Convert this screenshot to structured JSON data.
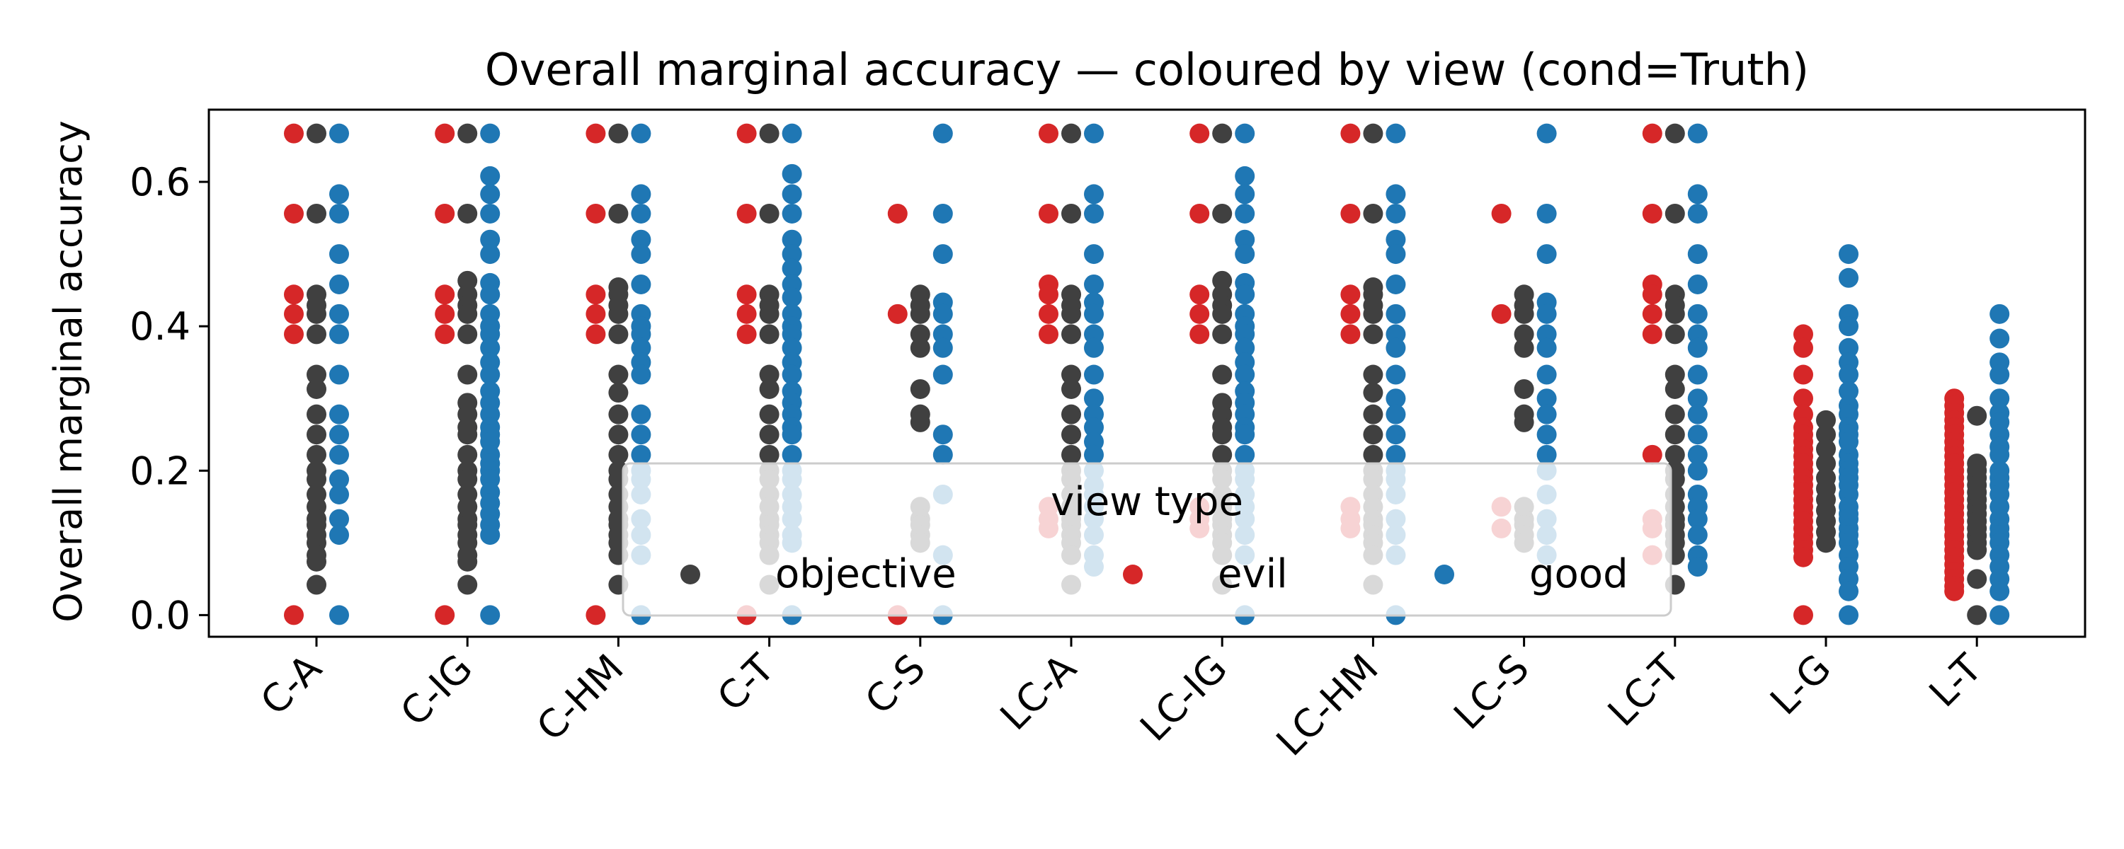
{
  "chart_data": {
    "type": "scatter",
    "title": "Overall marginal accuracy — coloured by view (cond=Truth)",
    "xlabel": "",
    "ylabel": "Overall marginal accuracy",
    "ylim": [
      -0.03,
      0.7
    ],
    "y_ticks": [
      0.0,
      0.2,
      0.4,
      0.6
    ],
    "y_tick_labels": [
      "0.0",
      "0.2",
      "0.4",
      "0.6"
    ],
    "categories": [
      "C-A",
      "C-IG",
      "C-HM",
      "C-T",
      "C-S",
      "LC-A",
      "LC-IG",
      "LC-HM",
      "LC-S",
      "LC-T",
      "L-G",
      "L-T"
    ],
    "grid": false,
    "legend": {
      "title": "view type",
      "placement": "lower-center",
      "entries": [
        {
          "name": "objective",
          "color": "#404040"
        },
        {
          "name": "evil",
          "color": "#d62728"
        },
        {
          "name": "good",
          "color": "#1f77b4"
        }
      ]
    },
    "series": [
      {
        "name": "objective",
        "color": "#404040",
        "values": [
          [
            0.667,
            0.556,
            0.444,
            0.429,
            0.417,
            0.389,
            0.333,
            0.313,
            0.278,
            0.25,
            0.222,
            0.2,
            0.188,
            0.167,
            0.15,
            0.133,
            0.125,
            0.111,
            0.1,
            0.083,
            0.074,
            0.042
          ],
          [
            0.667,
            0.556,
            0.463,
            0.444,
            0.429,
            0.417,
            0.389,
            0.333,
            0.294,
            0.278,
            0.26,
            0.25,
            0.222,
            0.2,
            0.188,
            0.167,
            0.15,
            0.133,
            0.125,
            0.111,
            0.1,
            0.083,
            0.074,
            0.042
          ],
          [
            0.667,
            0.556,
            0.454,
            0.444,
            0.429,
            0.417,
            0.389,
            0.333,
            0.308,
            0.278,
            0.25,
            0.222,
            0.2,
            0.188,
            0.167,
            0.15,
            0.133,
            0.125,
            0.111,
            0.1,
            0.083,
            0.042
          ],
          [
            0.667,
            0.556,
            0.444,
            0.429,
            0.417,
            0.389,
            0.333,
            0.313,
            0.278,
            0.25,
            0.222,
            0.2,
            0.188,
            0.167,
            0.15,
            0.133,
            0.125,
            0.111,
            0.1,
            0.083,
            0.042
          ],
          [
            0.444,
            0.429,
            0.417,
            0.389,
            0.37,
            0.313,
            0.278,
            0.267,
            0.15,
            0.133,
            0.125,
            0.111,
            0.1
          ],
          [
            0.667,
            0.556,
            0.444,
            0.429,
            0.417,
            0.389,
            0.333,
            0.313,
            0.278,
            0.25,
            0.222,
            0.2,
            0.188,
            0.167,
            0.15,
            0.133,
            0.125,
            0.111,
            0.1,
            0.083,
            0.042
          ],
          [
            0.667,
            0.556,
            0.463,
            0.444,
            0.429,
            0.417,
            0.389,
            0.333,
            0.294,
            0.278,
            0.26,
            0.25,
            0.222,
            0.2,
            0.188,
            0.167,
            0.15,
            0.133,
            0.125,
            0.111,
            0.1,
            0.083,
            0.042
          ],
          [
            0.667,
            0.556,
            0.454,
            0.444,
            0.429,
            0.417,
            0.389,
            0.333,
            0.308,
            0.278,
            0.25,
            0.222,
            0.2,
            0.188,
            0.167,
            0.15,
            0.133,
            0.125,
            0.111,
            0.1,
            0.083,
            0.042
          ],
          [
            0.444,
            0.429,
            0.417,
            0.389,
            0.37,
            0.313,
            0.278,
            0.267,
            0.15,
            0.133,
            0.125,
            0.111,
            0.1
          ],
          [
            0.667,
            0.556,
            0.444,
            0.429,
            0.417,
            0.389,
            0.333,
            0.313,
            0.278,
            0.25,
            0.222,
            0.2,
            0.188,
            0.167,
            0.15,
            0.133,
            0.125,
            0.111,
            0.1,
            0.083,
            0.042
          ],
          [
            0.27,
            0.25,
            0.23,
            0.21,
            0.19,
            0.175,
            0.16,
            0.145,
            0.13,
            0.115,
            0.1
          ],
          [
            0.276,
            0.21,
            0.2,
            0.19,
            0.18,
            0.17,
            0.16,
            0.15,
            0.14,
            0.13,
            0.12,
            0.11,
            0.1,
            0.09,
            0.05,
            0.0
          ]
        ]
      },
      {
        "name": "evil",
        "color": "#d62728",
        "values": [
          [
            0.667,
            0.556,
            0.444,
            0.417,
            0.389,
            0.0
          ],
          [
            0.667,
            0.556,
            0.444,
            0.417,
            0.389,
            0.0
          ],
          [
            0.667,
            0.556,
            0.444,
            0.417,
            0.389,
            0.0
          ],
          [
            0.667,
            0.556,
            0.444,
            0.417,
            0.389,
            0.0
          ],
          [
            0.556,
            0.417,
            0.0
          ],
          [
            0.667,
            0.556,
            0.458,
            0.444,
            0.417,
            0.389,
            0.15,
            0.133,
            0.12
          ],
          [
            0.667,
            0.556,
            0.444,
            0.417,
            0.389,
            0.15,
            0.133,
            0.12
          ],
          [
            0.667,
            0.556,
            0.444,
            0.417,
            0.389,
            0.15,
            0.133,
            0.12
          ],
          [
            0.556,
            0.417,
            0.15,
            0.12
          ],
          [
            0.667,
            0.556,
            0.458,
            0.444,
            0.417,
            0.389,
            0.222,
            0.133,
            0.12,
            0.083
          ],
          [
            0.389,
            0.37,
            0.333,
            0.3,
            0.278,
            0.26,
            0.25,
            0.24,
            0.23,
            0.22,
            0.21,
            0.2,
            0.19,
            0.18,
            0.17,
            0.16,
            0.15,
            0.14,
            0.13,
            0.12,
            0.11,
            0.1,
            0.09,
            0.08,
            0.0
          ],
          [
            0.3,
            0.29,
            0.28,
            0.27,
            0.26,
            0.25,
            0.24,
            0.23,
            0.22,
            0.21,
            0.2,
            0.19,
            0.18,
            0.17,
            0.16,
            0.15,
            0.14,
            0.13,
            0.12,
            0.11,
            0.1,
            0.09,
            0.08,
            0.07,
            0.06,
            0.05,
            0.04,
            0.033
          ]
        ]
      },
      {
        "name": "good",
        "color": "#1f77b4",
        "values": [
          [
            0.667,
            0.583,
            0.556,
            0.5,
            0.458,
            0.417,
            0.389,
            0.333,
            0.278,
            0.25,
            0.222,
            0.188,
            0.167,
            0.133,
            0.111,
            0.0
          ],
          [
            0.667,
            0.608,
            0.583,
            0.556,
            0.52,
            0.5,
            0.46,
            0.444,
            0.417,
            0.4,
            0.389,
            0.37,
            0.35,
            0.333,
            0.31,
            0.294,
            0.278,
            0.26,
            0.25,
            0.24,
            0.222,
            0.21,
            0.2,
            0.188,
            0.17,
            0.155,
            0.14,
            0.125,
            0.111,
            0.0
          ],
          [
            0.667,
            0.583,
            0.556,
            0.52,
            0.5,
            0.458,
            0.417,
            0.4,
            0.389,
            0.37,
            0.35,
            0.333,
            0.278,
            0.25,
            0.222,
            0.2,
            0.188,
            0.167,
            0.133,
            0.111,
            0.083,
            0.0
          ],
          [
            0.667,
            0.611,
            0.583,
            0.556,
            0.52,
            0.5,
            0.48,
            0.458,
            0.44,
            0.417,
            0.4,
            0.389,
            0.37,
            0.35,
            0.333,
            0.31,
            0.294,
            0.278,
            0.26,
            0.25,
            0.222,
            0.2,
            0.188,
            0.167,
            0.15,
            0.133,
            0.111,
            0.1,
            0.0
          ],
          [
            0.667,
            0.556,
            0.5,
            0.433,
            0.417,
            0.389,
            0.37,
            0.333,
            0.25,
            0.222,
            0.167,
            0.083,
            0.0
          ],
          [
            0.667,
            0.583,
            0.556,
            0.5,
            0.458,
            0.433,
            0.417,
            0.389,
            0.37,
            0.333,
            0.3,
            0.278,
            0.26,
            0.24,
            0.222,
            0.2,
            0.18,
            0.167,
            0.15,
            0.133,
            0.111,
            0.083,
            0.067
          ],
          [
            0.667,
            0.608,
            0.583,
            0.556,
            0.52,
            0.5,
            0.46,
            0.444,
            0.417,
            0.4,
            0.389,
            0.37,
            0.35,
            0.333,
            0.31,
            0.294,
            0.278,
            0.26,
            0.25,
            0.222,
            0.2,
            0.188,
            0.167,
            0.15,
            0.133,
            0.111,
            0.083,
            0.0
          ],
          [
            0.667,
            0.583,
            0.556,
            0.52,
            0.5,
            0.458,
            0.417,
            0.389,
            0.37,
            0.333,
            0.3,
            0.278,
            0.25,
            0.222,
            0.2,
            0.188,
            0.167,
            0.133,
            0.111,
            0.083,
            0.0
          ],
          [
            0.667,
            0.556,
            0.5,
            0.433,
            0.417,
            0.389,
            0.37,
            0.333,
            0.3,
            0.278,
            0.25,
            0.222,
            0.2,
            0.167,
            0.133,
            0.111,
            0.083
          ],
          [
            0.667,
            0.583,
            0.556,
            0.5,
            0.458,
            0.417,
            0.389,
            0.37,
            0.333,
            0.3,
            0.278,
            0.25,
            0.222,
            0.2,
            0.167,
            0.15,
            0.133,
            0.111,
            0.083,
            0.067
          ],
          [
            0.5,
            0.467,
            0.417,
            0.4,
            0.37,
            0.35,
            0.333,
            0.31,
            0.29,
            0.278,
            0.26,
            0.25,
            0.24,
            0.222,
            0.21,
            0.2,
            0.19,
            0.18,
            0.167,
            0.15,
            0.14,
            0.133,
            0.12,
            0.111,
            0.1,
            0.083,
            0.067,
            0.05,
            0.033,
            0.0
          ],
          [
            0.417,
            0.383,
            0.35,
            0.333,
            0.3,
            0.28,
            0.267,
            0.25,
            0.233,
            0.222,
            0.2,
            0.19,
            0.18,
            0.167,
            0.15,
            0.133,
            0.12,
            0.111,
            0.1,
            0.083,
            0.067,
            0.05,
            0.033,
            0.0
          ]
        ]
      }
    ]
  }
}
